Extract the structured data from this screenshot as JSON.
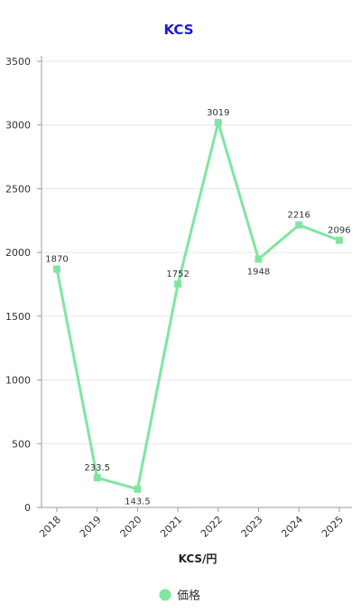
{
  "chart_data": {
    "type": "line",
    "title": "KCS",
    "xlabel": "KCS/円",
    "ylabel": "",
    "categories": [
      "2018",
      "2019",
      "2020",
      "2021",
      "2022",
      "2023",
      "2024",
      "2025"
    ],
    "series": [
      {
        "name": "価格",
        "values": [
          1870,
          233.5,
          143.5,
          1752,
          3019,
          1948,
          2216,
          2096
        ],
        "data_labels": [
          "1870",
          "233.5",
          "143.5",
          "1752",
          "3019",
          "1948",
          "2216",
          "2096"
        ]
      }
    ],
    "ylim": [
      0,
      3500
    ],
    "yticks": [
      0,
      500,
      1000,
      1500,
      2000,
      2500,
      3000,
      3500
    ],
    "grid": true,
    "legend_position": "bottom"
  },
  "colors": {
    "title": "#1a1adb",
    "line": "#7fe6a0",
    "marker": "#7fe6a0",
    "grid": "#e6e6ee",
    "axis": "#9a9ab0"
  }
}
